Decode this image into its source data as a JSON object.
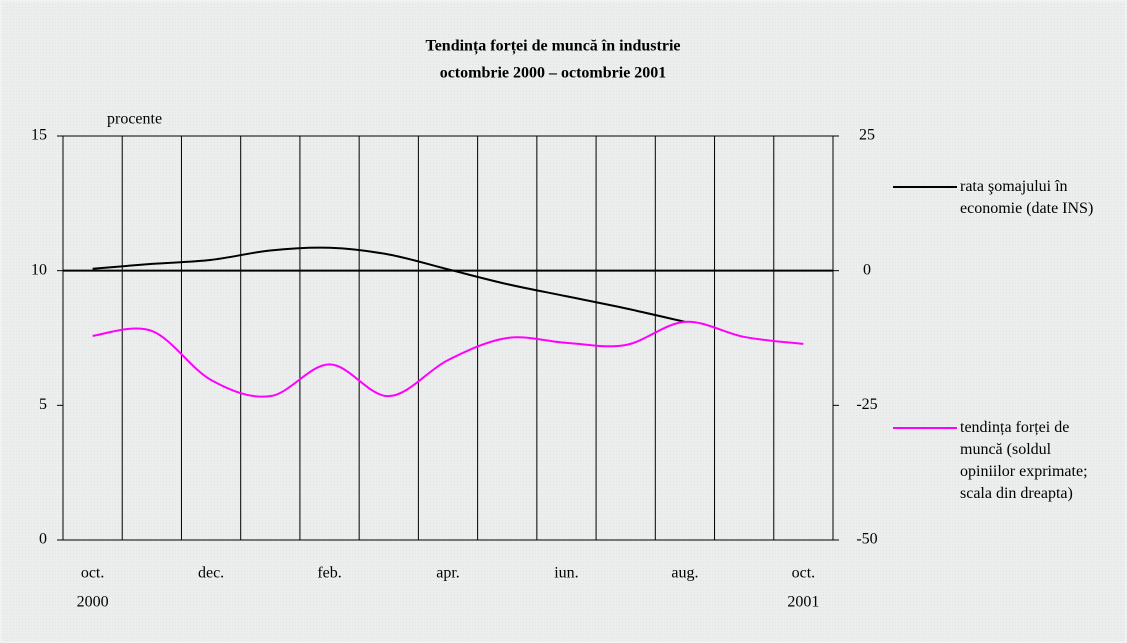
{
  "chart_data": {
    "type": "line",
    "title": "Tendința forței de muncă în industrie",
    "subtitle": "octombrie 2000 – octombrie 2001",
    "y_label": "procente",
    "categories": [
      "oct.",
      null,
      "dec.",
      null,
      "feb.",
      null,
      "apr.",
      null,
      "iun.",
      null,
      "aug.",
      null,
      "oct."
    ],
    "category_years": [
      "2000",
      null,
      null,
      null,
      null,
      null,
      null,
      null,
      null,
      null,
      null,
      null,
      "2001"
    ],
    "series": [
      {
        "name": "rata şomajului în economie (date INS)",
        "color": "#000000",
        "axis": "y",
        "values": [
          10.07,
          10.25,
          10.4,
          10.75,
          10.85,
          10.6,
          10.05,
          9.5,
          9.05,
          8.6,
          8.1,
          null,
          null
        ]
      },
      {
        "name": "tendința forței de muncă (soldul opiniilor exprimate; scala din dreapta)",
        "color": "#ff00ff",
        "axis": "y2",
        "values": [
          -12.1,
          -11.2,
          -20.3,
          -23.3,
          -17.4,
          -23.3,
          -16.6,
          -12.5,
          -13.4,
          -13.8,
          -9.5,
          -12.3,
          -13.6
        ]
      }
    ],
    "ylim": [
      0,
      15
    ],
    "yticks": [
      0,
      5,
      10,
      15
    ],
    "y2lim": [
      -50,
      25
    ],
    "y2ticks": [
      -50,
      -25,
      0,
      25
    ],
    "grid": "vertical"
  }
}
